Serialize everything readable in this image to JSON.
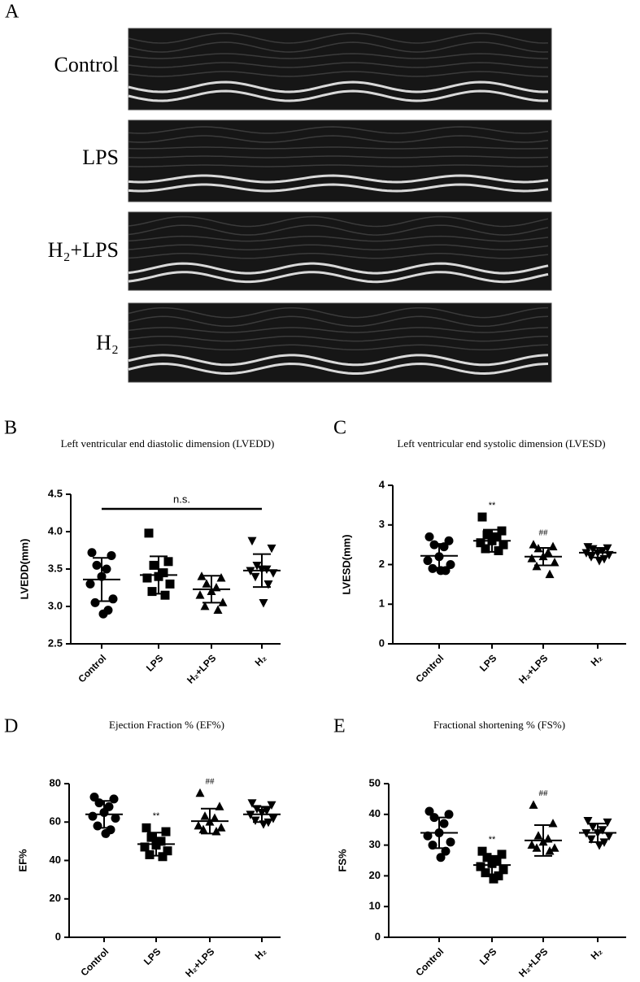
{
  "panel_a": {
    "letter": "A",
    "labels": [
      "Control",
      "LPS",
      "H₂+LPS",
      "H₂"
    ]
  },
  "chart_data": [
    {
      "type": "strip",
      "panel": "B",
      "title": "Left ventricular end diastolic dimension (LVEDD)",
      "y_label": "LVEDD(mm)",
      "ylim": [
        2.5,
        4.5
      ],
      "yticks": [
        2.5,
        {
          "value": 3,
          "label": "3.0"
        },
        3.5,
        {
          "value": 4,
          "label": "4.0"
        },
        4.5
      ],
      "bracket_label": "n.s.",
      "markers": [
        "circle",
        "square",
        "triangle-up",
        "triangle-down"
      ],
      "color": "#000000",
      "groups": [
        {
          "name": "Control",
          "values": [
            3.72,
            3.68,
            3.55,
            3.5,
            3.4,
            3.3,
            3.1,
            3.05,
            2.95,
            2.9
          ],
          "mean": 3.36,
          "sd": 0.29
        },
        {
          "name": "LPS",
          "values": [
            3.98,
            3.6,
            3.55,
            3.45,
            3.4,
            3.38,
            3.3,
            3.2,
            3.15
          ],
          "mean": 3.42,
          "sd": 0.25
        },
        {
          "name": "H₂+LPS",
          "values": [
            3.4,
            3.38,
            3.3,
            3.25,
            3.2,
            3.15,
            3.05,
            3.0,
            2.95
          ],
          "mean": 3.23,
          "sd": 0.18
        },
        {
          "name": "H₂",
          "values": [
            3.88,
            3.78,
            3.55,
            3.5,
            3.5,
            3.48,
            3.45,
            3.4,
            3.3,
            3.05
          ],
          "mean": 3.48,
          "sd": 0.22
        }
      ]
    },
    {
      "type": "strip",
      "panel": "C",
      "title": "Left ventricular end systolic dimension (LVESD)",
      "y_label": "LVESD(mm)",
      "ylim": [
        0,
        4
      ],
      "yticks": [
        0,
        1,
        2,
        3,
        4
      ],
      "markers": [
        "circle",
        "square",
        "triangle-up",
        "triangle-down"
      ],
      "color": "#000000",
      "groups": [
        {
          "name": "Control",
          "values": [
            2.7,
            2.6,
            2.5,
            2.45,
            2.2,
            2.1,
            2.0,
            1.9,
            1.85,
            1.85
          ],
          "mean": 2.22,
          "sd": 0.3
        },
        {
          "name": "LPS",
          "values": [
            3.2,
            2.85,
            2.75,
            2.7,
            2.6,
            2.55,
            2.5,
            2.4,
            2.35
          ],
          "mean": 2.6,
          "sd": 0.28,
          "mark": "**"
        },
        {
          "name": "H₂+LPS",
          "values": [
            2.5,
            2.45,
            2.4,
            2.3,
            2.2,
            2.15,
            2.05,
            1.95,
            1.75
          ],
          "mean": 2.2,
          "sd": 0.22,
          "mark": "##"
        },
        {
          "name": "H₂",
          "values": [
            2.45,
            2.42,
            2.4,
            2.35,
            2.3,
            2.3,
            2.25,
            2.2,
            2.15,
            2.1
          ],
          "mean": 2.3,
          "sd": 0.12
        }
      ]
    },
    {
      "type": "strip",
      "panel": "D",
      "title": "Ejection Fraction % (EF%)",
      "y_label": "EF%",
      "ylim": [
        0,
        80
      ],
      "yticks": [
        0,
        20,
        40,
        60,
        80
      ],
      "markers": [
        "circle",
        "square",
        "triangle-up",
        "triangle-down"
      ],
      "color": "#000000",
      "groups": [
        {
          "name": "Control",
          "values": [
            73,
            72,
            70,
            68,
            65,
            63,
            62,
            58,
            56,
            54
          ],
          "mean": 64,
          "sd": 7
        },
        {
          "name": "LPS",
          "values": [
            57,
            55,
            52,
            50,
            48,
            47,
            45,
            43,
            42
          ],
          "mean": 48.5,
          "sd": 6,
          "mark": "**"
        },
        {
          "name": "H₂+LPS",
          "values": [
            75,
            68,
            63,
            62,
            60,
            58,
            57,
            56,
            55
          ],
          "mean": 60.5,
          "sd": 6.5,
          "mark": "##"
        },
        {
          "name": "H₂",
          "values": [
            70,
            69,
            67,
            66,
            65,
            64,
            62,
            61,
            60,
            59
          ],
          "mean": 64,
          "sd": 4
        }
      ]
    },
    {
      "type": "strip",
      "panel": "E",
      "title": "Fractional shortening % (FS%)",
      "y_label": "FS%",
      "ylim": [
        0,
        50
      ],
      "yticks": [
        0,
        10,
        20,
        30,
        40,
        50
      ],
      "markers": [
        "circle",
        "square",
        "triangle-up",
        "triangle-down"
      ],
      "color": "#000000",
      "groups": [
        {
          "name": "Control",
          "values": [
            41,
            40,
            39,
            37,
            34,
            33,
            31,
            30,
            28,
            26
          ],
          "mean": 34,
          "sd": 5
        },
        {
          "name": "LPS",
          "values": [
            28,
            27,
            26,
            25,
            24,
            23,
            22,
            21,
            20,
            19
          ],
          "mean": 23.5,
          "sd": 3,
          "mark": "**"
        },
        {
          "name": "H₂+LPS",
          "values": [
            43,
            37,
            33,
            32,
            31,
            30,
            29,
            29,
            28
          ],
          "mean": 31.5,
          "sd": 5,
          "mark": "##"
        },
        {
          "name": "H₂",
          "values": [
            38,
            37.5,
            36,
            35,
            34,
            34,
            33,
            32,
            31,
            30
          ],
          "mean": 34,
          "sd": 3
        }
      ]
    }
  ]
}
